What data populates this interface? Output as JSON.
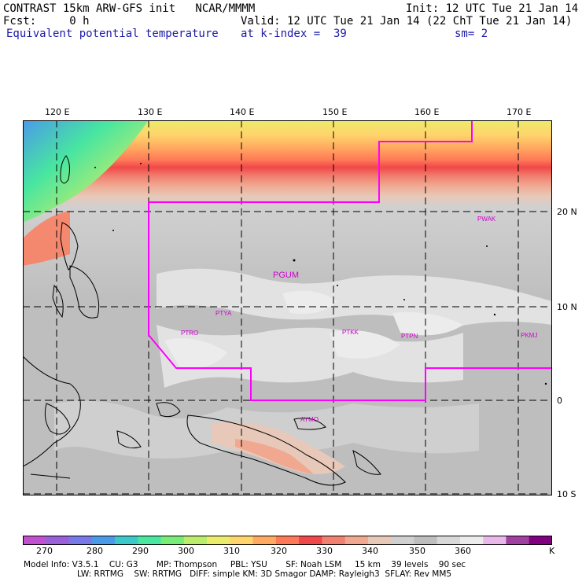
{
  "header": {
    "line1_left": "CONTRAST 15km ARW-GFS init   NCAR/MMMM",
    "line1_right": "Init: 12 UTC Tue 21 Jan 14",
    "line2_left": "Fcst:     0 h",
    "line2_right": "Valid: 12 UTC Tue 21 Jan 14 (22 ChT Tue 21 Jan 14)",
    "line3_left": "Equivalent potential temperature",
    "line3_mid": "at k-index =  39",
    "line3_right": "sm= 2"
  },
  "map": {
    "lon_labels": [
      "120 E",
      "130 E",
      "140 E",
      "150 E",
      "160 E",
      "170 E"
    ],
    "lat_labels": [
      "20 N",
      "10 N",
      "0",
      "10 S"
    ],
    "stations": [
      {
        "id": "PGUM",
        "label": "PGUM"
      },
      {
        "id": "PTYA",
        "label": "PTYA"
      },
      {
        "id": "PTRO",
        "label": "PTRO"
      },
      {
        "id": "PTKK",
        "label": "PTKK"
      },
      {
        "id": "PTPN",
        "label": "PTPN"
      },
      {
        "id": "PKMJ",
        "label": "PKMJ"
      },
      {
        "id": "PWAK",
        "label": "PWAK"
      },
      {
        "id": "AYMO",
        "label": "AYMO"
      }
    ],
    "boundary_color": "#ff00ff"
  },
  "colorbar": {
    "unit": "K",
    "tick_labels": [
      "270",
      "280",
      "290",
      "300",
      "310",
      "320",
      "330",
      "340",
      "350",
      "360"
    ],
    "colors": [
      "#c050d0",
      "#9a60d8",
      "#7878e8",
      "#4a9ae8",
      "#3ac8c8",
      "#48e6a0",
      "#78ec78",
      "#bcec6c",
      "#ecec6c",
      "#ffd46c",
      "#ffaa60",
      "#ff7858",
      "#f04848",
      "#f08070",
      "#f0a890",
      "#e8c8b8",
      "#d0d0d0",
      "#bebebe",
      "#d8d8d8",
      "#ececec",
      "#e8b8e8",
      "#a040a0",
      "#800080"
    ]
  },
  "footer": {
    "line1": "Model Info: V3.5.1    CU: G3       MP: Thompson     PBL: YSU       SF: Noah LSM     15 km    39 levels    90 sec",
    "line2": "LW: RRTMG    SW: RRTMG   DIFF: simple KM: 3D Smagor DAMP: Rayleigh3  SFLAY: Rev MM5"
  }
}
